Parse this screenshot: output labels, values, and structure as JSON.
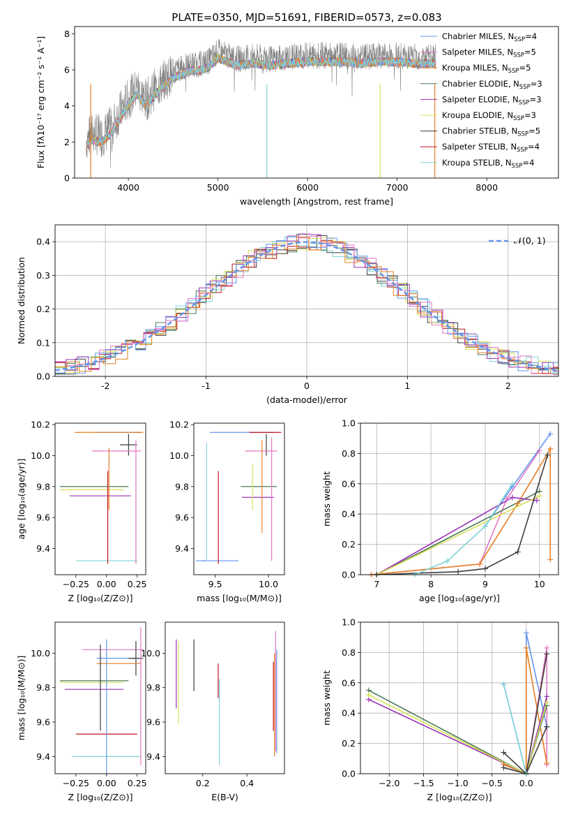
{
  "title": "PLATE=0350, MJD=51691, FIBERID=0573, z=0.083",
  "colors": {
    "chabrier_miles": "#6495ed",
    "salpeter_miles": "#e377c2",
    "kroupa_miles": "#e67e22",
    "chabrier_elodie": "#4a7a55",
    "salpeter_elodie": "#9b30b4",
    "kroupa_elodie": "#d4e157",
    "chabrier_stelib": "#3c3c3c",
    "salpeter_stelib": "#c0141c",
    "kroupa_stelib": "#7fd3d8",
    "grid": "#b0b0b0",
    "data_gray": "#808080"
  },
  "chart_data": [
    {
      "id": "spectrum",
      "type": "line",
      "title": "PLATE=0350, MJD=51691, FIBERID=0573, z=0.083",
      "xlabel": "wavelength [Angstrom, rest frame]",
      "ylabel": "Flux [fλ10⁻¹⁷ erg cm⁻² s⁻¹ A⁻¹]",
      "xlim": [
        3400,
        8800
      ],
      "ylim": [
        0,
        8.4
      ],
      "xticks": [
        4000,
        5000,
        6000,
        7000,
        8000
      ],
      "yticks": [
        0,
        2,
        4,
        6,
        8
      ],
      "grid": false,
      "legend_position": "right",
      "legend": [
        {
          "label": "Chabrier MILES, N",
          "sub": "SSP",
          "suffix": "=4",
          "color_key": "chabrier_miles"
        },
        {
          "label": "Salpeter MILES, N",
          "sub": "SSP",
          "suffix": "=5",
          "color_key": "salpeter_miles"
        },
        {
          "label": "Kroupa MILES, N",
          "sub": "SSP",
          "suffix": "=5",
          "color_key": "kroupa_miles"
        },
        {
          "label": "Chabrier ELODIE, N",
          "sub": "SSP",
          "suffix": "=3",
          "color_key": "chabrier_elodie"
        },
        {
          "label": "Salpeter ELODIE, N",
          "sub": "SSP",
          "suffix": "=3",
          "color_key": "salpeter_elodie"
        },
        {
          "label": "Kroupa ELODIE, N",
          "sub": "SSP",
          "suffix": "=3",
          "color_key": "kroupa_elodie"
        },
        {
          "label": "Chabrier STELIB, N",
          "sub": "SSP",
          "suffix": "=5",
          "color_key": "chabrier_stelib"
        },
        {
          "label": "Salpeter STELIB, N",
          "sub": "SSP",
          "suffix": "=4",
          "color_key": "salpeter_stelib"
        },
        {
          "label": "Kroupa STELIB, N",
          "sub": "SSP",
          "suffix": "=4",
          "color_key": "kroupa_stelib"
        }
      ],
      "data_envelope": {
        "x": [
          3530,
          3600,
          3700,
          3800,
          3900,
          4000,
          4100,
          4200,
          4300,
          4400,
          4500,
          4600,
          4700,
          4800,
          4900,
          5000,
          5200,
          5400,
          5600,
          5800,
          6000,
          6200,
          6400,
          6600,
          6800,
          7000,
          7200,
          7400
        ],
        "y": [
          2.1,
          2.5,
          2.3,
          2.8,
          3.6,
          4.4,
          5.0,
          4.3,
          5.0,
          5.4,
          5.9,
          6.1,
          6.3,
          6.3,
          6.5,
          7.0,
          6.6,
          6.7,
          6.6,
          6.7,
          6.8,
          6.8,
          6.8,
          6.7,
          6.8,
          6.8,
          6.7,
          6.7
        ]
      }
    },
    {
      "id": "residuals",
      "type": "step",
      "xlabel": "(data-model)/error",
      "ylabel": "Normed distribution",
      "xlim": [
        -2.5,
        2.5
      ],
      "ylim": [
        0,
        0.45
      ],
      "xticks": [
        -2,
        -1,
        0,
        1,
        2
      ],
      "yticks": [
        0.0,
        0.1,
        0.2,
        0.3,
        0.4
      ],
      "grid": true,
      "legend_position": "top-right",
      "normal_label": "𝒩(0, 1)",
      "normal_color_key": "chabrier_miles"
    },
    {
      "id": "age-vs-z",
      "type": "errorbar",
      "xlabel": "Z [log₁₀(Z/Z⊙)]",
      "ylabel": "age  [log₁₀(age/yr)]",
      "xlim": [
        -0.42,
        0.32
      ],
      "ylim": [
        9.23,
        10.21
      ],
      "xticks": [
        -0.25,
        0.0,
        0.25
      ],
      "xtick_labels": [
        "−0.25",
        "0.00",
        "0.25"
      ],
      "yticks": [
        9.4,
        9.6,
        9.8,
        10.0,
        10.2
      ],
      "points": [
        {
          "x": 0.18,
          "y": 10.07,
          "xerr": 0.07,
          "yerr": 0.07,
          "color_key": "chabrier_stelib"
        },
        {
          "x": 0.25,
          "y": 10.15,
          "xerr": 0.03,
          "yerr": 0.0,
          "color_key": "salpeter_stelib"
        },
        {
          "x": 0.08,
          "y": 10.15,
          "xerr": 0.17,
          "yerr": 0.0,
          "color_key": "chabrier_miles"
        },
        {
          "x": 0.02,
          "y": 10.15,
          "xerr": 0.28,
          "yerr": 0.0,
          "color_key": "kroupa_miles"
        },
        {
          "x": 0.08,
          "y": 10.03,
          "xerr": 0.2,
          "yerr": 0.0,
          "color_key": "salpeter_miles"
        },
        {
          "x": -0.1,
          "y": 9.8,
          "xerr": 0.28,
          "yerr": 0.0,
          "color_key": "chabrier_elodie"
        },
        {
          "x": -0.12,
          "y": 9.78,
          "xerr": 0.26,
          "yerr": 0.0,
          "color_key": "kroupa_elodie"
        },
        {
          "x": -0.05,
          "y": 9.74,
          "xerr": 0.25,
          "yerr": 0.0,
          "color_key": "salpeter_elodie"
        },
        {
          "x": 0.0,
          "y": 9.32,
          "xerr": 0.25,
          "yerr": 0.0,
          "color_key": "kroupa_stelib"
        },
        {
          "x": 0.02,
          "y": 9.85,
          "xerr": 0.0,
          "yerr": 0.2,
          "color_key": "kroupa_miles"
        },
        {
          "x": 0.24,
          "y": 9.7,
          "xerr": 0.0,
          "yerr": 0.4,
          "color_key": "salpeter_miles"
        },
        {
          "x": 0.01,
          "y": 9.6,
          "xerr": 0.0,
          "yerr": 0.3,
          "color_key": "salpeter_stelib"
        }
      ]
    },
    {
      "id": "age-vs-mass",
      "type": "errorbar",
      "xlabel": "mass [log₁₀(M/M⊙)]",
      "xlim": [
        9.3,
        10.15
      ],
      "ylim": [
        9.23,
        10.21
      ],
      "xticks": [
        9.5,
        10.0
      ],
      "xtick_labels": [
        "9.5",
        "10.0"
      ],
      "yticks": [
        9.4,
        9.6,
        9.8,
        10.0,
        10.2
      ],
      "points": [
        {
          "x": 9.98,
          "y": 10.07,
          "xerr": 0.0,
          "yerr": 0.07,
          "color_key": "chabrier_stelib"
        },
        {
          "x": 9.75,
          "y": 10.15,
          "xerr": 0.3,
          "yerr": 0.0,
          "color_key": "chabrier_miles"
        },
        {
          "x": 9.97,
          "y": 10.15,
          "xerr": 0.15,
          "yerr": 0.0,
          "color_key": "salpeter_stelib"
        },
        {
          "x": 9.93,
          "y": 10.03,
          "xerr": 0.15,
          "yerr": 0.0,
          "color_key": "salpeter_miles"
        },
        {
          "x": 9.91,
          "y": 9.8,
          "xerr": 0.17,
          "yerr": 0.0,
          "color_key": "chabrier_elodie"
        },
        {
          "x": 9.9,
          "y": 9.73,
          "xerr": 0.15,
          "yerr": 0.0,
          "color_key": "salpeter_elodie"
        },
        {
          "x": 9.4,
          "y": 9.32,
          "xerr": 0.0,
          "yerr": 0.0,
          "color_key": "kroupa_stelib"
        },
        {
          "x": 9.52,
          "y": 9.32,
          "xerr": 0.2,
          "yerr": 0.0,
          "color_key": "chabrier_miles"
        },
        {
          "x": 9.53,
          "y": 9.6,
          "xerr": 0.0,
          "yerr": 0.3,
          "color_key": "salpeter_stelib"
        },
        {
          "x": 9.42,
          "y": 9.7,
          "xerr": 0.0,
          "yerr": 0.38,
          "color_key": "kroupa_stelib"
        },
        {
          "x": 9.85,
          "y": 9.8,
          "xerr": 0.0,
          "yerr": 0.15,
          "color_key": "kroupa_elodie"
        },
        {
          "x": 9.94,
          "y": 9.8,
          "xerr": 0.0,
          "yerr": 0.3,
          "color_key": "kroupa_miles"
        },
        {
          "x": 10.03,
          "y": 9.72,
          "xerr": 0.0,
          "yerr": 0.4,
          "color_key": "salpeter_miles"
        }
      ]
    },
    {
      "id": "mass-weight-vs-age",
      "type": "line",
      "xlabel": "age  [log₁₀(age/yr)]",
      "ylabel": "mass weight",
      "xlim": [
        6.7,
        10.35
      ],
      "ylim": [
        0,
        1.0
      ],
      "xticks": [
        7,
        8,
        9,
        10
      ],
      "yticks": [
        0.0,
        0.2,
        0.4,
        0.6,
        0.8,
        1.0
      ],
      "grid": true,
      "series": [
        {
          "color_key": "chabrier_miles",
          "x": [
            9.0,
            9.5,
            10.2
          ],
          "y": [
            0.32,
            0.58,
            0.93
          ]
        },
        {
          "color_key": "salpeter_miles",
          "x": [
            6.9,
            8.9,
            9.4,
            10.0
          ],
          "y": [
            0.0,
            0.07,
            0.5,
            0.82
          ]
        },
        {
          "color_key": "kroupa_miles",
          "x": [
            6.9,
            8.9,
            9.6,
            10.2,
            10.2
          ],
          "y": [
            0.0,
            0.07,
            0.47,
            0.83,
            0.1
          ]
        },
        {
          "color_key": "chabrier_elodie",
          "x": [
            7.0,
            10.0
          ],
          "y": [
            0.0,
            0.55
          ]
        },
        {
          "color_key": "salpeter_elodie",
          "x": [
            7.0,
            9.5,
            9.95
          ],
          "y": [
            0.0,
            0.51,
            0.49
          ]
        },
        {
          "color_key": "kroupa_elodie",
          "x": [
            7.0,
            10.0
          ],
          "y": [
            0.0,
            0.52
          ]
        },
        {
          "color_key": "chabrier_stelib",
          "x": [
            7.0,
            8.5,
            9.0,
            9.6,
            10.15
          ],
          "y": [
            0.0,
            0.02,
            0.04,
            0.15,
            0.79
          ]
        },
        {
          "color_key": "kroupa_stelib",
          "x": [
            7.7,
            8.3,
            9.0,
            9.5
          ],
          "y": [
            0.0,
            0.09,
            0.32,
            0.6
          ]
        }
      ]
    },
    {
      "id": "mass-vs-z",
      "type": "errorbar",
      "xlabel": "Z [log₁₀(Z/Z⊙)]",
      "ylabel": "mass [log₁₀(M/M⊙)]",
      "xlim": [
        -0.42,
        0.32
      ],
      "ylim": [
        9.3,
        10.18
      ],
      "xticks": [
        -0.25,
        0.0,
        0.25
      ],
      "xtick_labels": [
        "−0.25",
        "0.00",
        "0.25"
      ],
      "yticks": [
        9.4,
        9.6,
        9.8,
        10.0
      ],
      "points": [
        {
          "x": 0.05,
          "y": 10.02,
          "xerr": 0.25,
          "yerr": 0.0,
          "color_key": "salpeter_miles"
        },
        {
          "x": 0.1,
          "y": 9.97,
          "xerr": 0.18,
          "yerr": 0.0,
          "color_key": "chabrier_miles"
        },
        {
          "x": 0.24,
          "y": 9.97,
          "xerr": 0.06,
          "yerr": 0.1,
          "color_key": "chabrier_stelib"
        },
        {
          "x": 0.1,
          "y": 9.94,
          "xerr": 0.18,
          "yerr": 0.0,
          "color_key": "kroupa_miles"
        },
        {
          "x": -0.1,
          "y": 9.84,
          "xerr": 0.28,
          "yerr": 0.0,
          "color_key": "chabrier_elodie"
        },
        {
          "x": -0.12,
          "y": 9.83,
          "xerr": 0.26,
          "yerr": 0.0,
          "color_key": "kroupa_elodie"
        },
        {
          "x": -0.1,
          "y": 9.79,
          "xerr": 0.24,
          "yerr": 0.0,
          "color_key": "salpeter_elodie"
        },
        {
          "x": 0.0,
          "y": 9.53,
          "xerr": 0.25,
          "yerr": 0.0,
          "color_key": "salpeter_stelib"
        },
        {
          "x": 0.0,
          "y": 9.4,
          "xerr": 0.28,
          "yerr": 0.0,
          "color_key": "kroupa_stelib"
        },
        {
          "x": -0.05,
          "y": 9.8,
          "xerr": 0.0,
          "yerr": 0.25,
          "color_key": "chabrier_stelib"
        },
        {
          "x": 0.0,
          "y": 9.68,
          "xerr": 0.0,
          "yerr": 0.4,
          "color_key": "chabrier_miles"
        },
        {
          "x": 0.28,
          "y": 9.75,
          "xerr": 0.0,
          "yerr": 0.4,
          "color_key": "salpeter_miles"
        }
      ]
    },
    {
      "id": "mass-vs-ebv",
      "type": "errorbar",
      "xlabel": "E(B-V)",
      "xlim": [
        0.03,
        0.57
      ],
      "ylim": [
        9.3,
        10.18
      ],
      "xticks": [
        0.2,
        0.4
      ],
      "xtick_labels": [
        "0.2",
        "0.4"
      ],
      "yticks": [
        9.4,
        9.6,
        9.8,
        10.0
      ],
      "points": [
        {
          "x": 0.08,
          "y": 9.88,
          "xerr": 0.0,
          "yerr": 0.2,
          "color_key": "salpeter_elodie"
        },
        {
          "x": 0.09,
          "y": 9.83,
          "xerr": 0.0,
          "yerr": 0.24,
          "color_key": "kroupa_elodie"
        },
        {
          "x": 0.16,
          "y": 9.93,
          "xerr": 0.0,
          "yerr": 0.15,
          "color_key": "chabrier_stelib"
        },
        {
          "x": 0.27,
          "y": 9.84,
          "xerr": 0.0,
          "yerr": 0.1,
          "color_key": "salpeter_stelib"
        },
        {
          "x": 0.275,
          "y": 9.6,
          "xerr": 0.0,
          "yerr": 0.25,
          "color_key": "kroupa_stelib"
        },
        {
          "x": 0.53,
          "y": 9.78,
          "xerr": 0.0,
          "yerr": 0.35,
          "color_key": "salpeter_miles"
        },
        {
          "x": 0.535,
          "y": 9.72,
          "xerr": 0.0,
          "yerr": 0.3,
          "color_key": "chabrier_miles"
        },
        {
          "x": 0.525,
          "y": 9.7,
          "xerr": 0.0,
          "yerr": 0.3,
          "color_key": "kroupa_miles"
        },
        {
          "x": 0.52,
          "y": 9.75,
          "xerr": 0.0,
          "yerr": 0.2,
          "color_key": "salpeter_stelib"
        }
      ]
    },
    {
      "id": "mass-weight-vs-z",
      "type": "line",
      "xlabel": "Z [log₁₀(Z/Z⊙)]",
      "ylabel": "mass weight",
      "xlim": [
        -2.42,
        0.47
      ],
      "ylim": [
        0,
        1.0
      ],
      "xticks": [
        -2.0,
        -1.5,
        -1.0,
        -0.5,
        0.0
      ],
      "xtick_labels": [
        "−2.0",
        "−1.5",
        "−1.0",
        "−0.5",
        "0.0"
      ],
      "yticks": [
        0.0,
        0.2,
        0.4,
        0.6,
        0.8,
        1.0
      ],
      "grid": true,
      "series": [
        {
          "color_key": "chabrier_miles",
          "x": [
            -0.33,
            0.0,
            0.0,
            0.3
          ],
          "y": [
            0.59,
            0.0,
            0.93,
            0.31
          ]
        },
        {
          "color_key": "salpeter_miles",
          "x": [
            -0.33,
            0.0,
            0.3,
            0.3
          ],
          "y": [
            0.06,
            0.0,
            0.83,
            0.06
          ]
        },
        {
          "color_key": "kroupa_miles",
          "x": [
            -0.33,
            0.0,
            0.0,
            0.3
          ],
          "y": [
            0.06,
            0.0,
            0.83,
            0.07
          ]
        },
        {
          "color_key": "chabrier_elodie",
          "x": [
            -2.3,
            0.0,
            0.3
          ],
          "y": [
            0.55,
            0.0,
            0.45
          ]
        },
        {
          "color_key": "salpeter_elodie",
          "x": [
            -2.3,
            0.0,
            0.3
          ],
          "y": [
            0.49,
            0.0,
            0.51
          ]
        },
        {
          "color_key": "kroupa_elodie",
          "x": [
            -2.3,
            0.0,
            0.3
          ],
          "y": [
            0.52,
            0.0,
            0.47
          ]
        },
        {
          "color_key": "chabrier_stelib",
          "x": [
            -0.33,
            0.0,
            0.3
          ],
          "y": [
            0.04,
            0.0,
            0.79
          ]
        },
        {
          "color_key": "chabrier_stelib",
          "x": [
            -0.33,
            0.0,
            0.3
          ],
          "y": [
            0.14,
            0.0,
            0.31
          ]
        },
        {
          "color_key": "kroupa_stelib",
          "x": [
            -0.33,
            0.0,
            -0.33
          ],
          "y": [
            0.59,
            0.0,
            0.59
          ]
        }
      ]
    }
  ]
}
